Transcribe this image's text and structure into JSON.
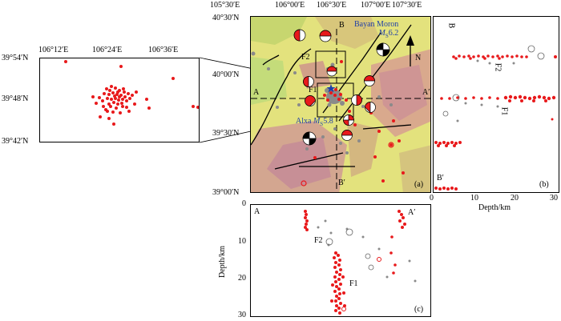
{
  "inset": {
    "lon_ticks": [
      "106°12′E",
      "106°24′E",
      "106°36′E"
    ],
    "lat_ticks": [
      "39°54′N",
      "39°48′N",
      "39°42′N"
    ]
  },
  "main_map": {
    "lon_ticks": [
      "105°30′E",
      "106°00′E",
      "106°30′E",
      "107°00′E",
      "107°30′E"
    ],
    "lat_ticks": [
      "40°30′N",
      "40°00′N",
      "39°30′N",
      "39°00′N"
    ],
    "panel_label": "(a)",
    "north_label": "N",
    "profile_labels": {
      "a": "A",
      "a_prime": "A′",
      "b": "B",
      "b_prime": "B′"
    },
    "fault_labels": {
      "f1": "F1",
      "f2": "F2"
    },
    "event1": {
      "name": "Bayan Moron",
      "mag_prefix": "M",
      "mag_sub": "S",
      "mag_value": "6.2"
    },
    "event2": {
      "name": "Alxa",
      "mag_prefix": "M",
      "mag_sub": "S",
      "mag_value": "5.8"
    }
  },
  "section_b": {
    "top_label": "B",
    "bottom_label": "B′",
    "panel_label": "(b)",
    "x_ticks": [
      "0",
      "10",
      "20",
      "30"
    ],
    "x_label": "Depth/km",
    "fault_labels": {
      "f1": "F1",
      "f2": "F2"
    }
  },
  "section_c": {
    "left_label": "A",
    "right_label": "A′",
    "panel_label": "(c)",
    "y_ticks": [
      "0",
      "10",
      "20",
      "30"
    ],
    "y_label": "Depth/km",
    "fault_labels": {
      "f1": "F1",
      "f2": "F2"
    }
  },
  "colors": {
    "quake": "#e8191b",
    "gray": "#8a8a8a",
    "blue": "#1f3fa8"
  }
}
